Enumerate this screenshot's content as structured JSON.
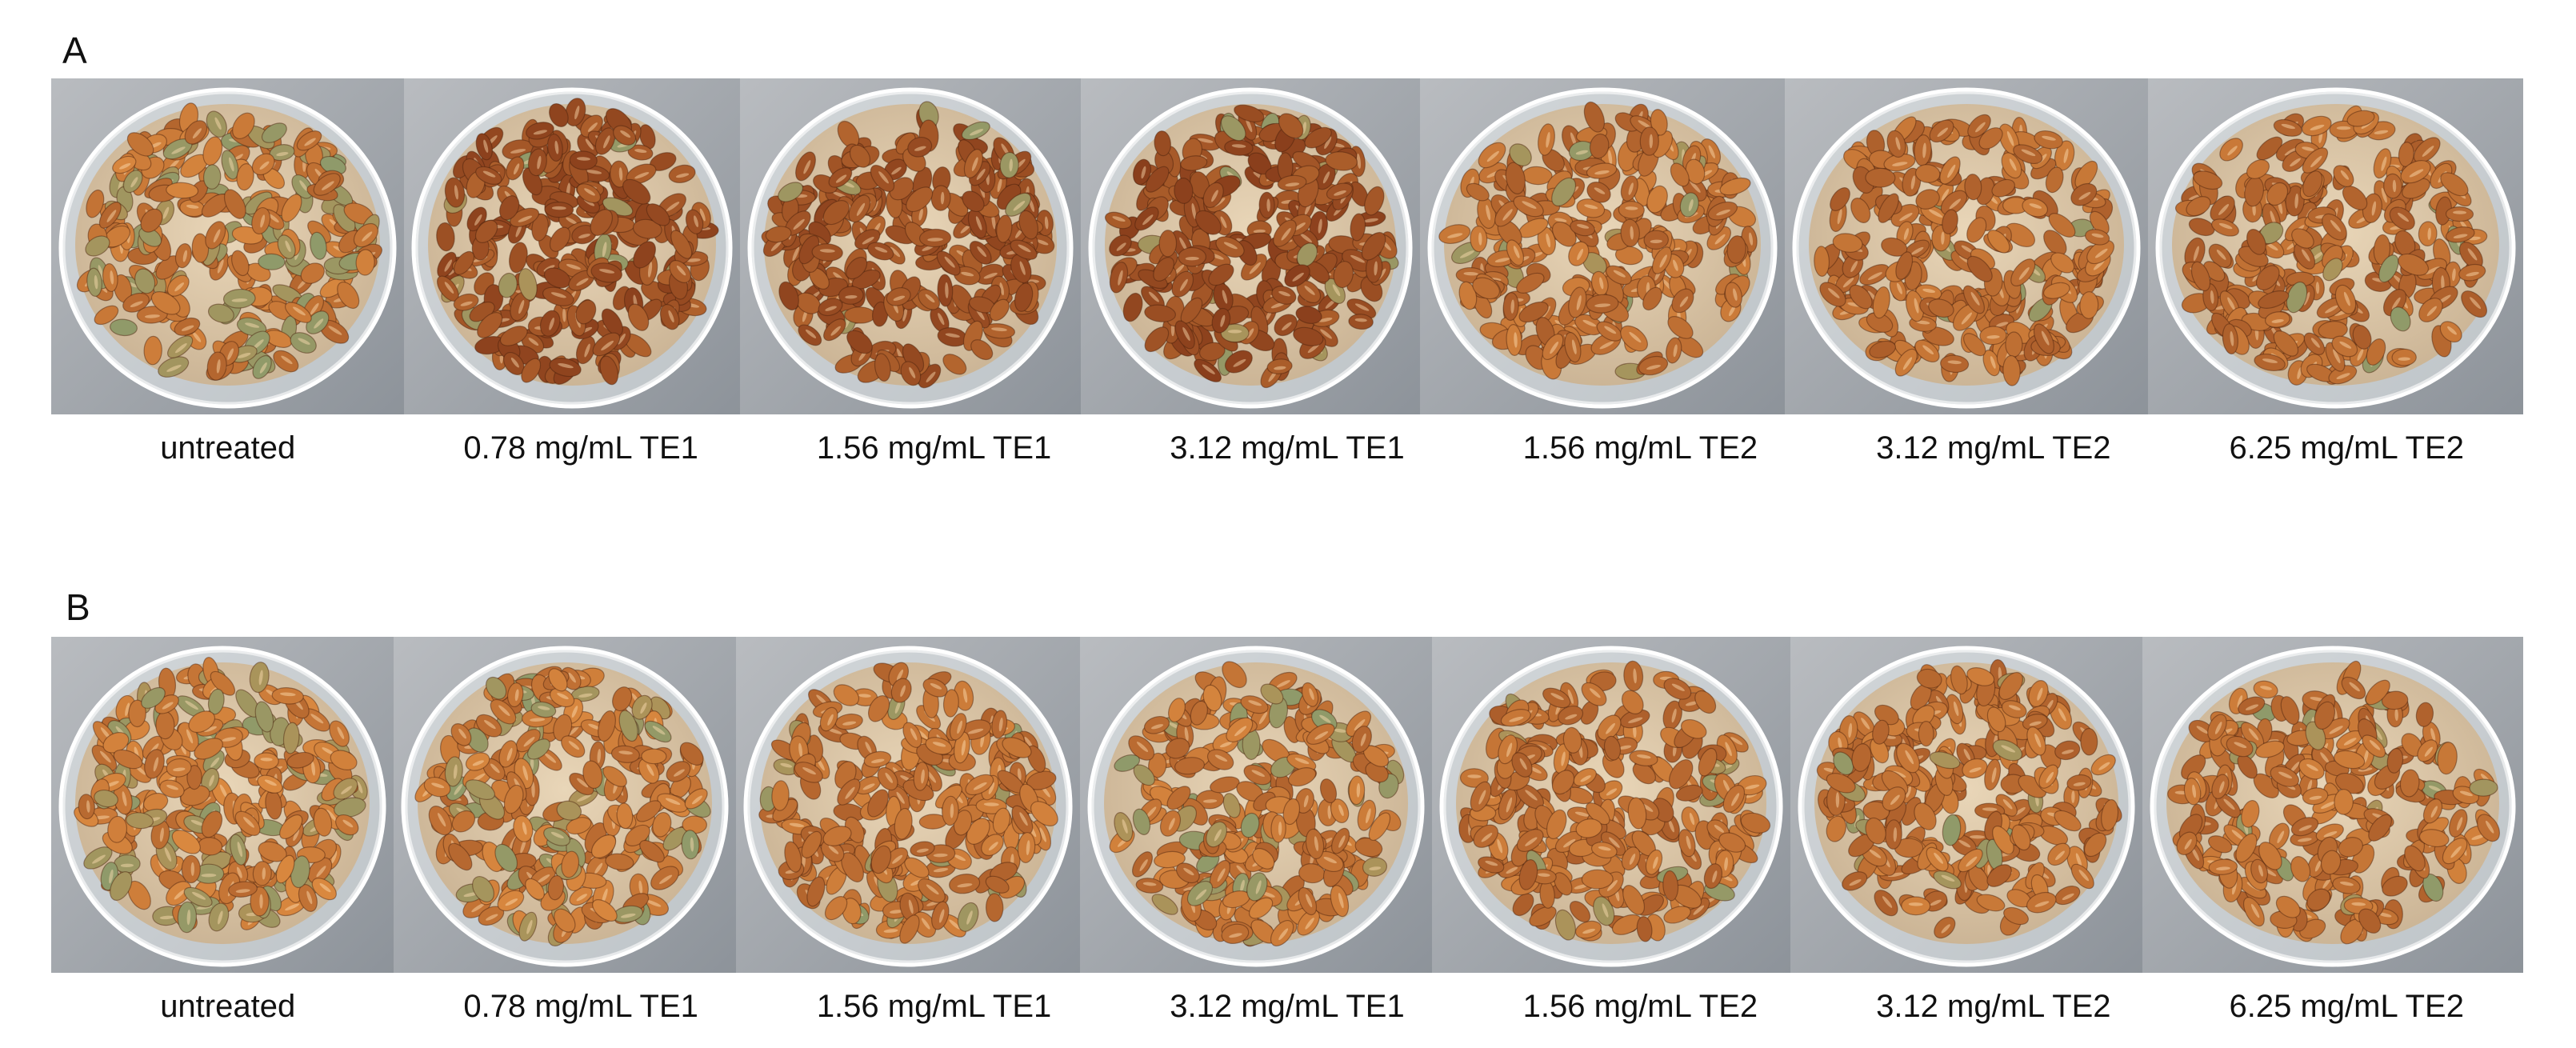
{
  "panels": [
    {
      "letter": "A",
      "labels": [
        "untreated",
        "0.78 mg/mL TE1",
        "1.56 mg/mL TE1",
        "3.12 mg/mL TE1",
        "1.56 mg/mL TE2",
        "3.12 mg/mL TE2",
        "6.25 mg/mL TE2"
      ]
    },
    {
      "letter": "B",
      "labels": [
        "untreated",
        "0.78 mg/mL TE1",
        "1.56 mg/mL TE1",
        "3.12 mg/mL TE1",
        "1.56 mg/mL TE2",
        "3.12 mg/mL TE2",
        "6.25 mg/mL TE2"
      ]
    }
  ],
  "colors": {
    "grain_light": "#d9883f",
    "grain_dark": "#8a3f1c",
    "grain_mold": "#8f9a6a",
    "background_metal": "#b9bcc0",
    "background_metal_dark": "#8d939a",
    "dish_rim": "#e8ecef"
  }
}
